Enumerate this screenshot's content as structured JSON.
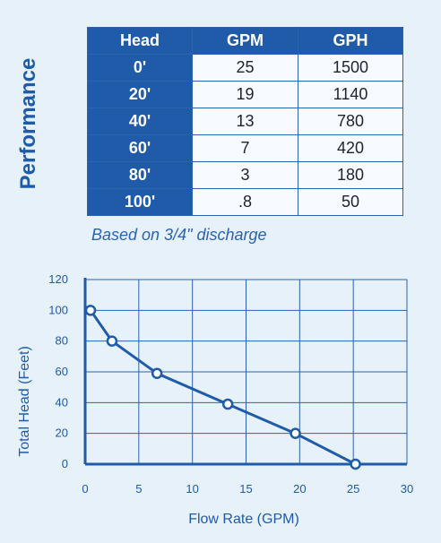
{
  "side_title": "Performance",
  "table": {
    "headers": [
      "Head",
      "GPM",
      "GPH"
    ],
    "rows": [
      [
        "0'",
        "25",
        "1500"
      ],
      [
        "20'",
        "19",
        "1140"
      ],
      [
        "40'",
        "13",
        "780"
      ],
      [
        "60'",
        "7",
        "420"
      ],
      [
        "80'",
        "3",
        "180"
      ],
      [
        "100'",
        ".8",
        "50"
      ]
    ]
  },
  "note": "Based on 3/4\" discharge",
  "chart_data": {
    "type": "line",
    "xlabel": "Flow Rate (GPM)",
    "ylabel": "Total Head (Feet)",
    "xlim": [
      0,
      30
    ],
    "ylim": [
      0,
      120
    ],
    "xticks": [
      0,
      5,
      10,
      15,
      20,
      25,
      30
    ],
    "yticks": [
      0,
      20,
      40,
      60,
      80,
      100,
      120
    ],
    "grid": true,
    "x": [
      0.5,
      2.5,
      6.7,
      13.3,
      19.6,
      25.2
    ],
    "y": [
      100,
      80,
      59,
      39,
      20,
      0
    ],
    "colors": {
      "line": "#1f5ba8",
      "grid": "#2a63b0",
      "marker_fill": "#ffffff"
    }
  }
}
